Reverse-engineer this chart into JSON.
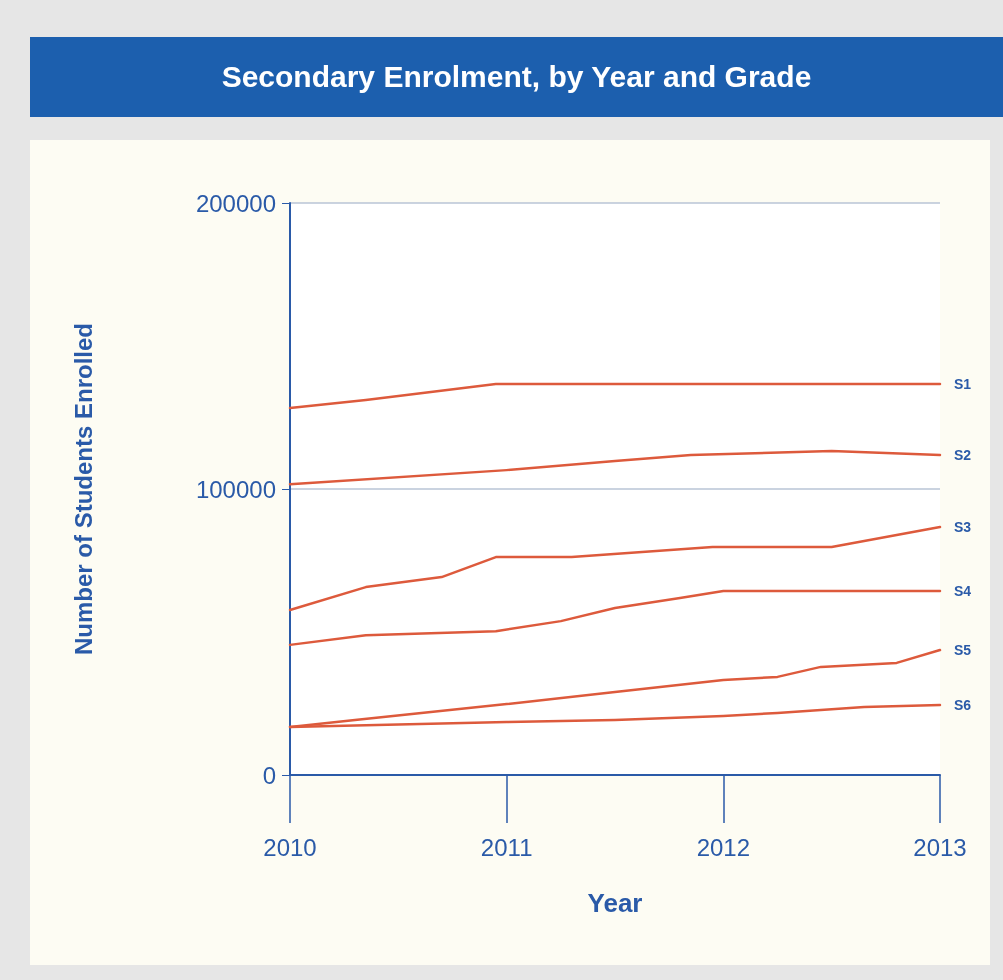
{
  "chart_data": {
    "type": "line",
    "title": "Secondary Enrolment, by Year and Grade",
    "xlabel": "Year",
    "ylabel": "Number of Students Enrolled",
    "xlim": [
      2010,
      2013
    ],
    "xticks": [
      2010,
      2011,
      2012,
      2013
    ],
    "ylim": [
      0,
      200000
    ],
    "yticks": [
      0,
      100000,
      200000
    ],
    "grid": "y",
    "legend": false,
    "marker": "none",
    "line_style": "solid",
    "series": [
      {
        "name": "S1",
        "color": "#dd5a3c",
        "x": [
          2010,
          2010.35,
          2010.95,
          2013
        ],
        "values": [
          128300,
          131100,
          136700,
          136700
        ]
      },
      {
        "name": "S2",
        "color": "#dd5a3c",
        "x": [
          2010,
          2011,
          2011.5,
          2011.85,
          2012.5,
          2013
        ],
        "values": [
          101700,
          106600,
          109800,
          111900,
          113300,
          111900
        ]
      },
      {
        "name": "S3",
        "color": "#dd5a3c",
        "x": [
          2010,
          2010.35,
          2010.7,
          2010.95,
          2011.3,
          2011.95,
          2012.5,
          2013
        ],
        "values": [
          57700,
          65700,
          69200,
          76200,
          76200,
          79700,
          79700,
          86700
        ]
      },
      {
        "name": "S4",
        "color": "#dd5a3c",
        "x": [
          2010,
          2010.35,
          2010.95,
          2011.25,
          2011.5,
          2011.8,
          2012,
          2013
        ],
        "values": [
          45500,
          48900,
          50300,
          53800,
          58400,
          61900,
          64300,
          64300
        ]
      },
      {
        "name": "S5",
        "color": "#dd5a3c",
        "x": [
          2010,
          2010.3,
          2011,
          2011.5,
          2012,
          2012.25,
          2012.45,
          2012.8,
          2013
        ],
        "values": [
          16800,
          19200,
          24800,
          29000,
          33200,
          34300,
          37800,
          39200,
          43700
        ]
      },
      {
        "name": "S6",
        "color": "#dd5a3c",
        "x": [
          2010,
          2011,
          2011.5,
          2012,
          2012.25,
          2012.65,
          2013
        ],
        "values": [
          16800,
          18500,
          19200,
          20600,
          21700,
          23800,
          24500
        ]
      }
    ]
  }
}
